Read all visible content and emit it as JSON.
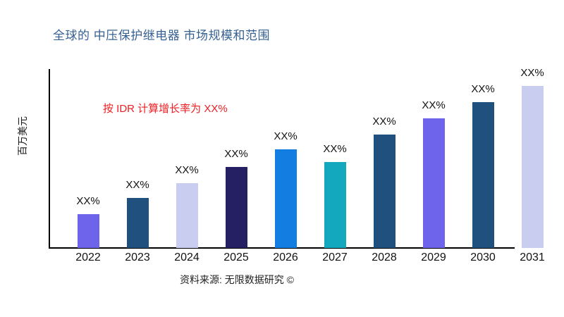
{
  "page": {
    "background": "#ffffff"
  },
  "header": {
    "title": "全球的 中压保护继电器 市场规模和范围",
    "title_color": "#366092"
  },
  "annotation": {
    "text": "按 IDR 计算增长率为 XX%",
    "color": "#ee1e22"
  },
  "source": {
    "text": "资料来源: 无限数据研究 ©"
  },
  "chart_data": {
    "type": "bar",
    "title": "全球的 中压保护继电器 市场规模和范围",
    "xlabel": "",
    "ylabel": "百万美元",
    "categories": [
      "2022",
      "2023",
      "2024",
      "2025",
      "2026",
      "2027",
      "2028",
      "2029",
      "2030",
      "2031"
    ],
    "values": [
      21,
      31,
      40,
      50,
      61,
      53,
      70,
      80,
      90,
      100
    ],
    "values_note": "relative bar heights in percent of tallest bar (2031); actual figures are masked on the chart as XX%",
    "value_labels": [
      "XX%",
      "XX%",
      "XX%",
      "XX%",
      "XX%",
      "XX%",
      "XX%",
      "XX%",
      "XX%",
      "XX%"
    ],
    "bar_colors": [
      "#6e63eb",
      "#20507e",
      "#c9cdef",
      "#252063",
      "#137de1",
      "#13a8bd",
      "#20507e",
      "#6e63eb",
      "#20507e",
      "#c9cdef"
    ],
    "ylim": [
      0,
      100
    ],
    "grid": false,
    "legend": "none",
    "annotation": "按 IDR 计算增长率为 XX%"
  }
}
